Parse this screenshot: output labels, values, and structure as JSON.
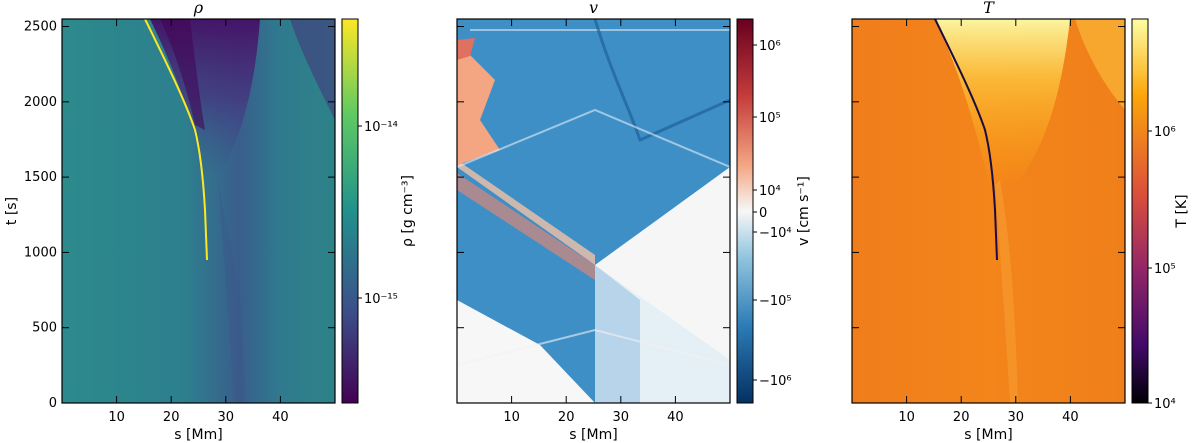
{
  "chart_data": [
    {
      "type": "heatmap",
      "title": "ρ",
      "xlabel": "s [Mm]",
      "ylabel": "t [s]",
      "xlim": [
        0,
        50
      ],
      "ylim": [
        0,
        2550
      ],
      "xticks": [
        "10",
        "20",
        "30",
        "40"
      ],
      "yticks": [
        "0",
        "500",
        "1000",
        "1500",
        "2000",
        "2500"
      ],
      "colorbar": {
        "label": "ρ [g cm⁻³]",
        "scale": "log",
        "ticks": [
          "10⁻¹⁴",
          "10⁻¹⁵"
        ],
        "colors": [
          "#fde725",
          "#5ec962",
          "#21918c",
          "#3b528b",
          "#440154"
        ]
      }
    },
    {
      "type": "heatmap",
      "title": "v",
      "xlabel": "s [Mm]",
      "ylabel": "",
      "xlim": [
        0,
        50
      ],
      "ylim": [
        0,
        2550
      ],
      "xticks": [
        "10",
        "20",
        "30",
        "40"
      ],
      "colorbar": {
        "label": "v [cm s⁻¹]",
        "scale": "symlog",
        "ticks": [
          "10⁶",
          "10⁵",
          "10⁴",
          "0",
          "−10⁴",
          "−10⁵",
          "−10⁶"
        ],
        "colors": [
          "#67001f",
          "#d6604d",
          "#f7f7f7",
          "#4393c3",
          "#053061"
        ]
      }
    },
    {
      "type": "heatmap",
      "title": "T",
      "xlabel": "s [Mm]",
      "ylabel": "",
      "xlim": [
        0,
        50
      ],
      "ylim": [
        0,
        2550
      ],
      "xticks": [
        "10",
        "20",
        "30",
        "40"
      ],
      "colorbar": {
        "label": "T [K]",
        "scale": "log",
        "ticks": [
          "10⁶",
          "10⁵",
          "10⁴"
        ],
        "colors": [
          "#fcffa4",
          "#fca50a",
          "#dd513a",
          "#932667",
          "#420a68",
          "#000004"
        ]
      }
    }
  ]
}
